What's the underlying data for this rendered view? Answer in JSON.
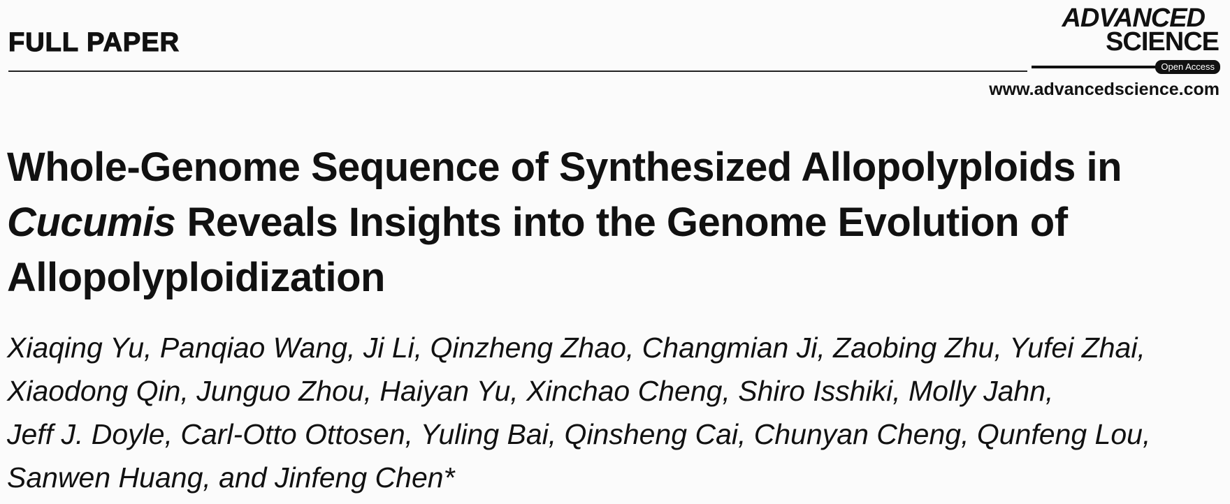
{
  "header": {
    "section": "FULL PAPER",
    "logo": {
      "line1": "ADVANCED",
      "line2": "SCIENCE",
      "badge": "Open Access"
    },
    "url": "www.advancedscience.com"
  },
  "title": {
    "line1": "Whole-Genome Sequence of Synthesized Allopolyploids in",
    "line2_italic": "Cucumis",
    "line2_rest": "Reveals Insights into the Genome Evolution of",
    "line3": "Allopolyploidization"
  },
  "authors": [
    "Xiaqing Yu, Panqiao Wang, Ji Li, Qinzheng Zhao, Changmian Ji, Zaobing Zhu, Yufei Zhai,",
    "Xiaodong Qin, Junguo Zhou, Haiyan Yu, Xinchao Cheng, Shiro Isshiki, Molly Jahn,",
    "Jeff J. Doyle, Carl-Otto Ottosen, Yuling Bai, Qinsheng Cai, Chunyan Cheng, Qunfeng Lou,",
    "Sanwen Huang, and Jinfeng Chen*"
  ]
}
